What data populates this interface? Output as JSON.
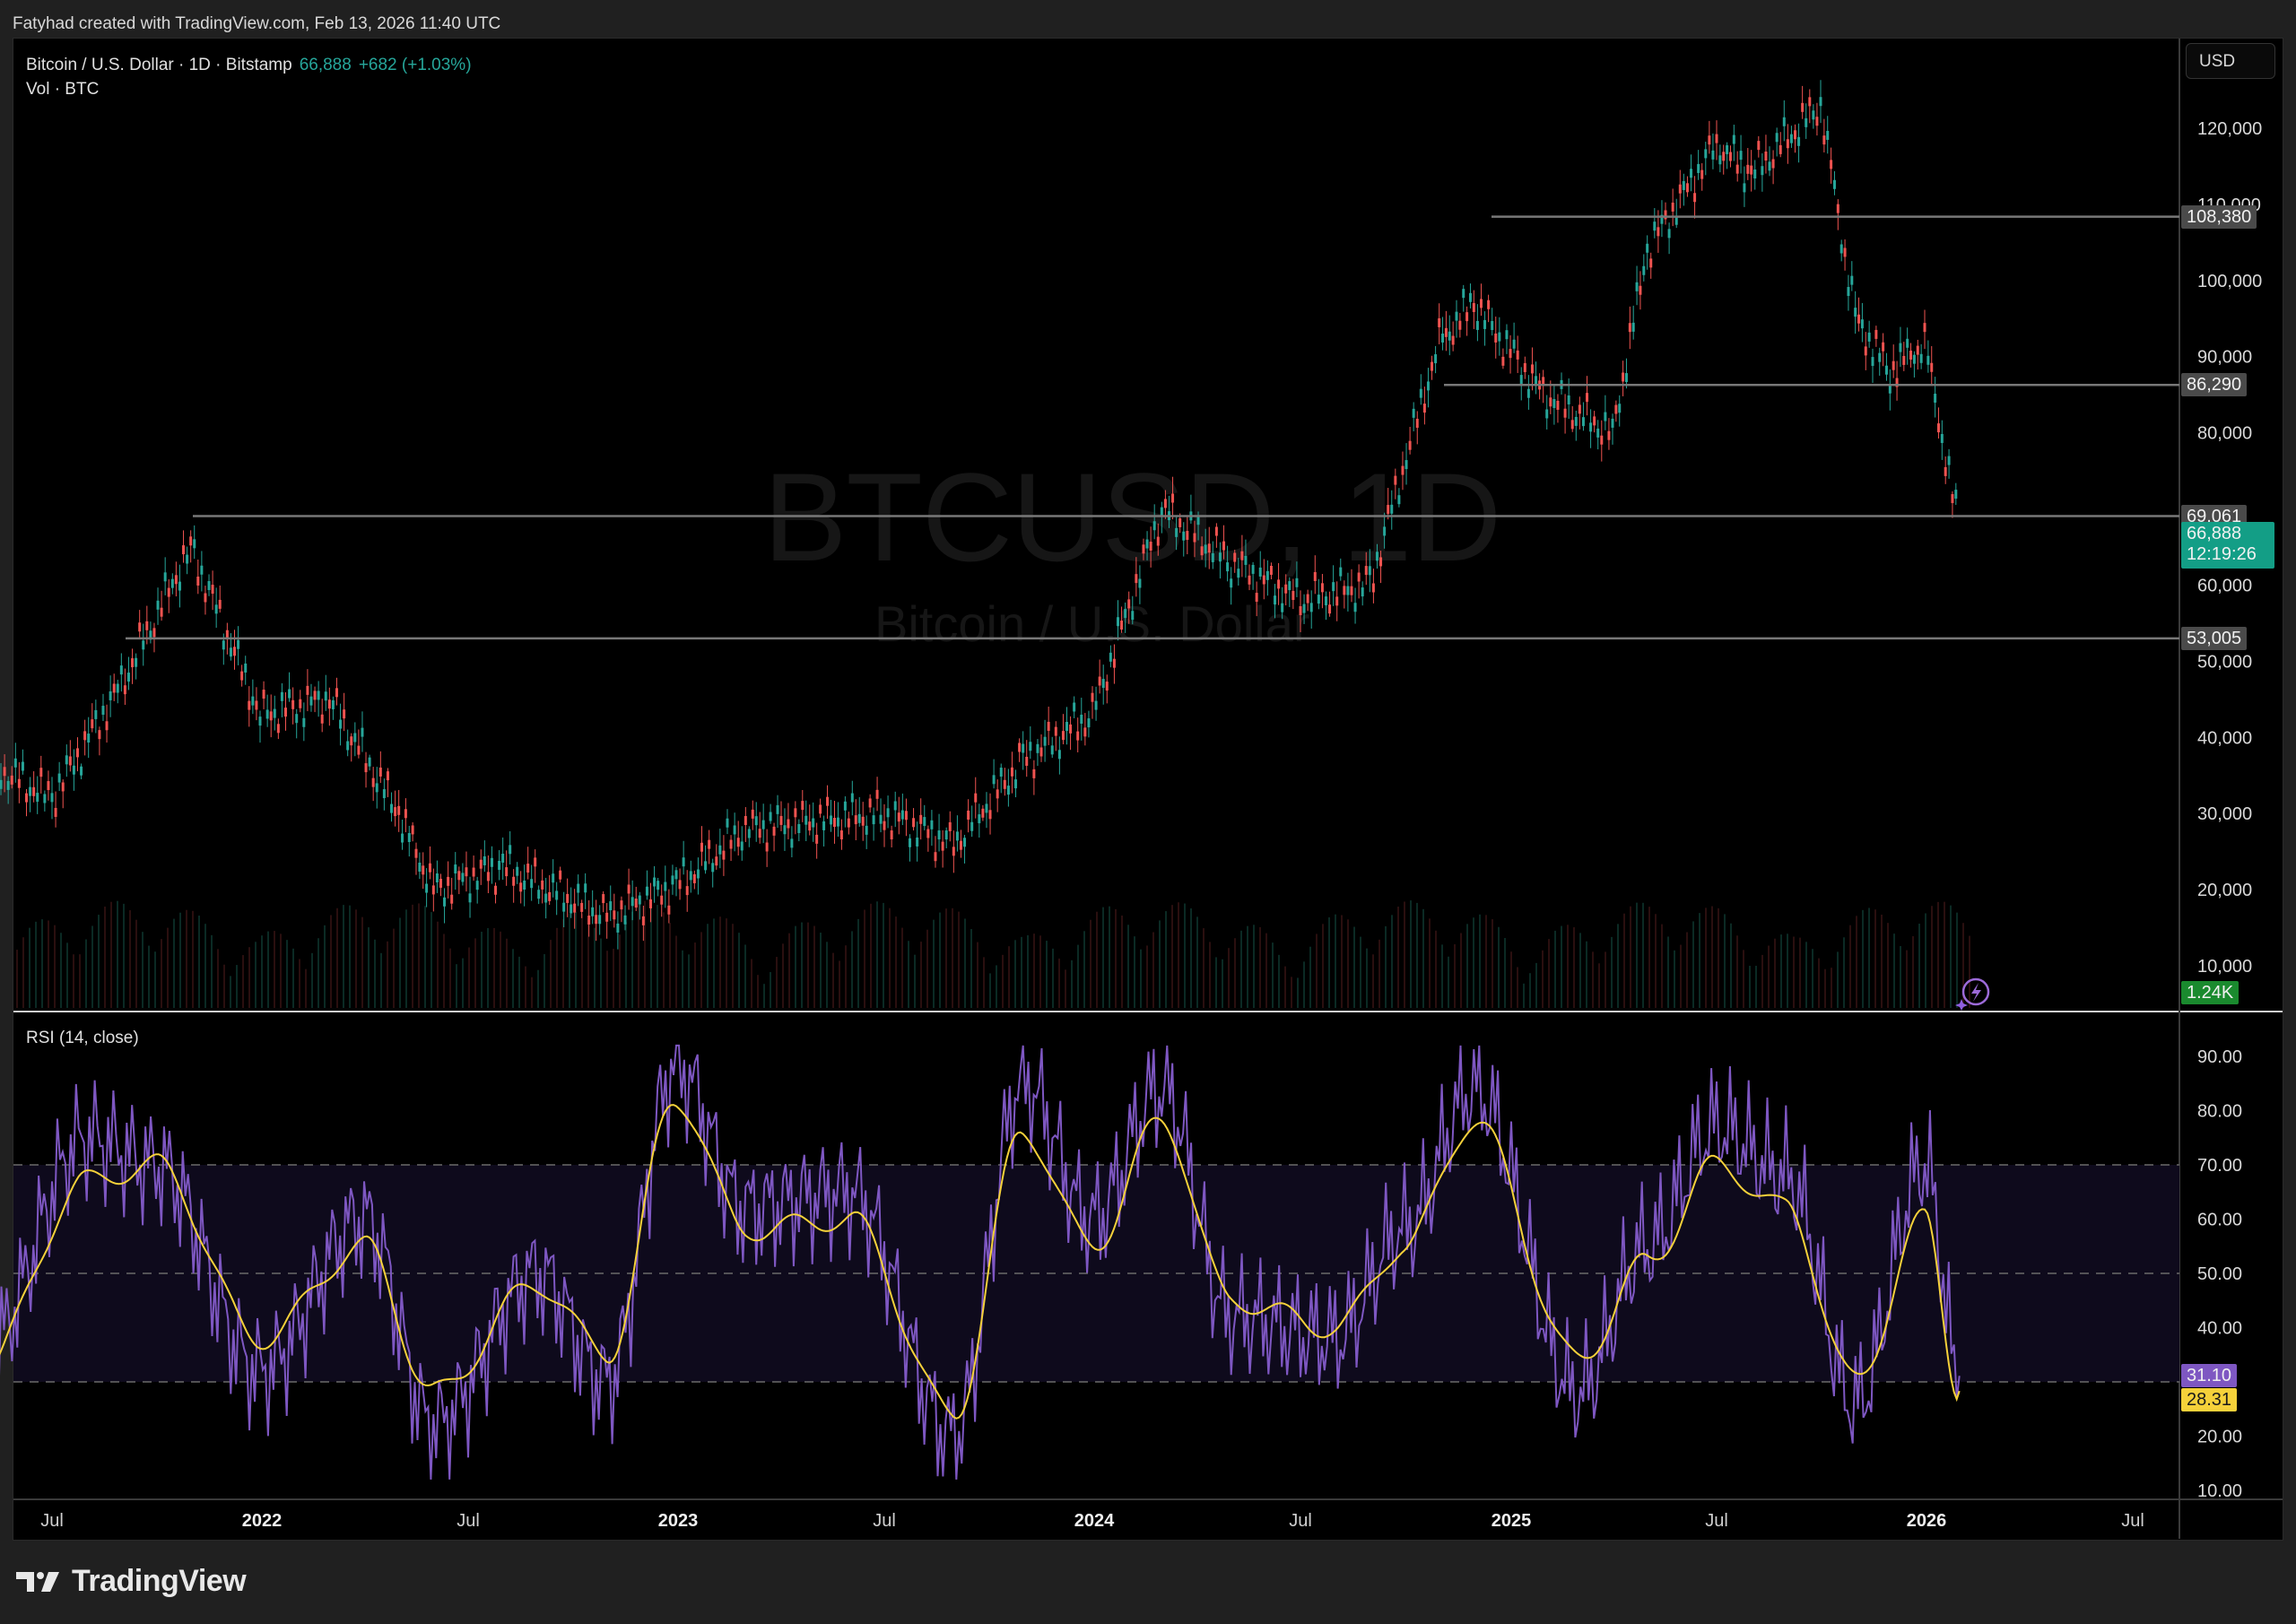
{
  "credit": "Fatyhad created with TradingView.com, Feb 13, 2026 11:40 UTC",
  "legend": {
    "symbol": "Bitcoin / U.S. Dollar · 1D · Bitstamp",
    "price": "66,888",
    "change": "+682 (+1.03%)",
    "volume": "Vol · BTC"
  },
  "watermark": {
    "line1": "BTCUSD, 1D",
    "line2": "Bitcoin / U.S. Dollar"
  },
  "currency": "USD",
  "rsi_title": "RSI (14, close)",
  "price_axis": {
    "ticks": [
      "120,000",
      "110,000",
      "100,000",
      "90,000",
      "80,000",
      "60,000",
      "50,000",
      "40,000",
      "30,000",
      "20,000",
      "10,000"
    ],
    "level_tags": [
      "108,380",
      "86,290",
      "69,061",
      "53,005"
    ],
    "last_price": "66,888",
    "countdown": "12:19:26",
    "volume_tag": "1.24K"
  },
  "rsi_axis": {
    "ticks": [
      "90.00",
      "80.00",
      "70.00",
      "60.00",
      "50.00",
      "40.00",
      "20.00",
      "10.00"
    ],
    "rsi_value": "31.10",
    "rsi_ma_value": "28.31"
  },
  "time_axis": [
    "Jul",
    "2022",
    "Jul",
    "2023",
    "Jul",
    "2024",
    "Jul",
    "2025",
    "Jul",
    "2026",
    "Jul"
  ],
  "brand": "TradingView",
  "colors": {
    "up": "#26a69a",
    "down": "#ef5350",
    "rsi": "#7e57c2",
    "rsi_ma": "#f5d13a",
    "level_line": "#787878",
    "last_price": "#139e86",
    "volume_tag": "#1a8a2e"
  },
  "chart_data": [
    {
      "type": "line",
      "title": "Bitcoin / U.S. Dollar · 1D · Bitstamp",
      "xlabel": "",
      "ylabel": "USD",
      "ylim": [
        5000,
        130000
      ],
      "x": [
        "2021-05",
        "2021-07",
        "2021-09",
        "2021-11",
        "2022-01",
        "2022-03",
        "2022-05",
        "2022-06",
        "2022-08",
        "2022-11",
        "2023-01",
        "2023-03",
        "2023-07",
        "2023-09",
        "2023-11",
        "2024-01",
        "2024-03",
        "2024-05",
        "2024-07",
        "2024-09",
        "2024-11",
        "2024-12",
        "2025-02",
        "2025-04",
        "2025-05",
        "2025-07",
        "2025-08",
        "2025-10",
        "2025-11",
        "2025-12",
        "2026-01",
        "2026-02"
      ],
      "series": [
        {
          "name": "BTCUSD close (approx)",
          "values": [
            37000,
            32000,
            47000,
            65000,
            43000,
            45000,
            30000,
            20000,
            23000,
            16500,
            20500,
            28000,
            30000,
            26000,
            37000,
            43000,
            70000,
            63000,
            58000,
            60000,
            92000,
            97000,
            85000,
            80000,
            104000,
            118000,
            114000,
            123000,
            95000,
            88000,
            92000,
            66888
          ]
        }
      ],
      "horizontal_levels": [
        108380,
        86290,
        69061,
        53005
      ],
      "last_value": 66888,
      "grid": false
    },
    {
      "type": "line",
      "title": "RSI (14, close)",
      "ylim": [
        10,
        95
      ],
      "x": [
        "2021-05",
        "2021-08",
        "2021-10",
        "2022-01",
        "2022-04",
        "2022-06",
        "2022-09",
        "2022-11",
        "2023-01",
        "2023-03",
        "2023-06",
        "2023-09",
        "2023-11",
        "2024-01",
        "2024-03",
        "2024-05",
        "2024-08",
        "2024-10",
        "2024-12",
        "2025-03",
        "2025-05",
        "2025-07",
        "2025-09",
        "2025-11",
        "2026-01",
        "2026-02"
      ],
      "series": [
        {
          "name": "RSI",
          "values": [
            35,
            75,
            70,
            32,
            60,
            22,
            50,
            30,
            88,
            62,
            65,
            20,
            85,
            60,
            84,
            42,
            38,
            58,
            84,
            28,
            55,
            77,
            68,
            26,
            70,
            31.1
          ]
        },
        {
          "name": "RSI-based MA",
          "values": [
            33,
            67,
            70,
            38,
            55,
            28,
            48,
            35,
            82,
            58,
            60,
            24,
            76,
            55,
            78,
            45,
            40,
            55,
            78,
            34,
            52,
            70,
            62,
            30,
            60,
            28.31
          ]
        }
      ],
      "reference_lines": [
        70,
        50,
        30
      ],
      "last_values": {
        "RSI": 31.1,
        "MA": 28.31
      }
    }
  ]
}
